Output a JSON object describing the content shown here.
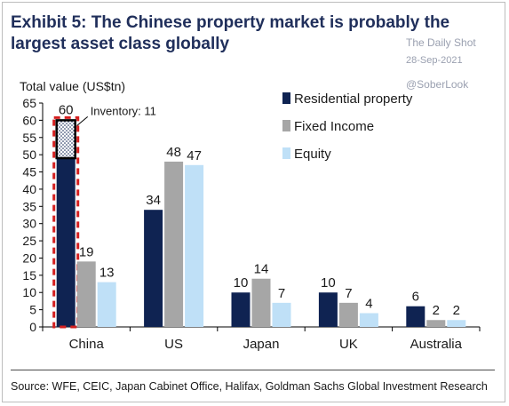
{
  "header": {
    "title": "Exhibit 5: The Chinese property market is probably the largest asset class globally"
  },
  "watermark": {
    "source": "The Daily Shot",
    "date": "28-Sep-2021",
    "handle": "@SoberLook"
  },
  "footer": {
    "source": "Source: WFE, CEIC, Japan Cabinet Office, Halifax, Goldman Sachs Global Investment Research"
  },
  "chart_data": {
    "type": "bar",
    "ylabel": "Total value (US$tn)",
    "xlabel": "",
    "ylim": [
      0,
      65
    ],
    "yticks": [
      0,
      5,
      10,
      15,
      20,
      25,
      30,
      35,
      40,
      45,
      50,
      55,
      60,
      65
    ],
    "categories": [
      "China",
      "US",
      "Japan",
      "UK",
      "Australia"
    ],
    "series": [
      {
        "name": "Residential property",
        "values": [
          60,
          34,
          10,
          10,
          6
        ],
        "color": "#0f2352"
      },
      {
        "name": "Fixed Income",
        "values": [
          19,
          48,
          14,
          7,
          2
        ],
        "color": "#a6a6a6"
      },
      {
        "name": "Equity",
        "values": [
          13,
          47,
          7,
          4,
          2
        ],
        "color": "#bfe0f7"
      }
    ],
    "annotations": [
      {
        "text": "Inventory: 11",
        "category": "China",
        "series": "Residential property",
        "value": 11
      }
    ],
    "legend_position": "top-right",
    "grid": false
  }
}
